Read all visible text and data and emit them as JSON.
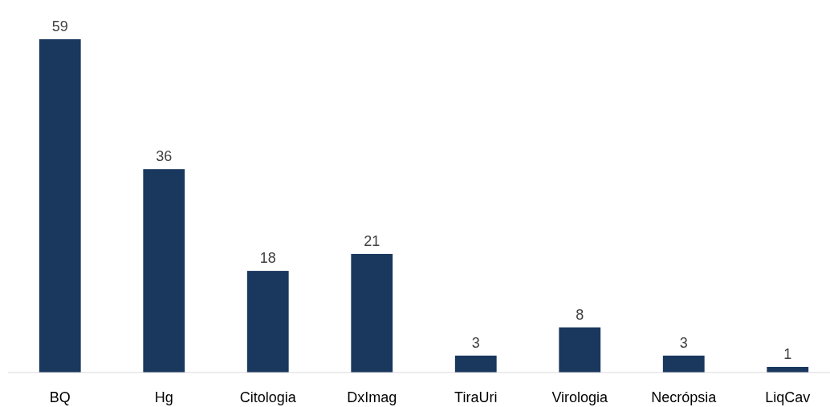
{
  "chart_data": {
    "type": "bar",
    "categories": [
      "BQ",
      "Hg",
      "Citologia",
      "DxImag",
      "TiraUri",
      "Virologia",
      "Necrópsia",
      "LiqCav"
    ],
    "values": [
      59,
      36,
      18,
      21,
      3,
      8,
      3,
      1
    ],
    "color": "#1a375e",
    "data_labels": true
  }
}
